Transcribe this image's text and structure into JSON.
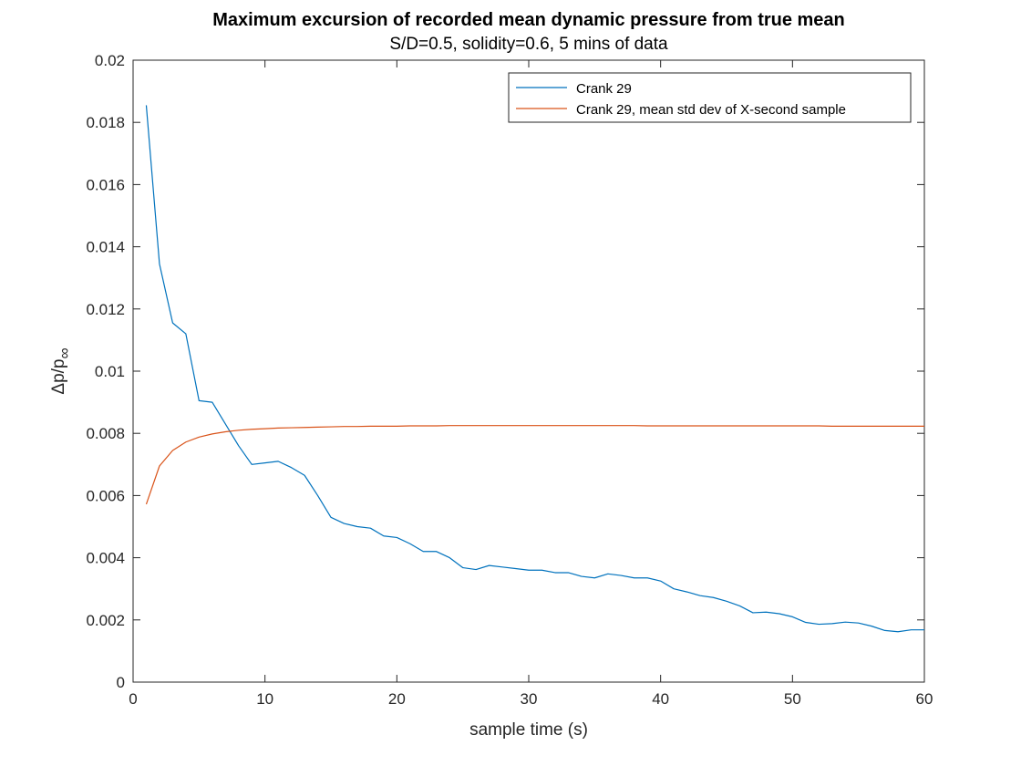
{
  "chart_data": {
    "type": "line",
    "title": "Maximum excursion of recorded mean dynamic pressure from true mean",
    "subtitle": "S/D=0.5, solidity=0.6, 5 mins of data",
    "xlabel": "sample time (s)",
    "ylabel_main": "Δp/p",
    "ylabel_sub": "∞",
    "xlim": [
      0,
      60
    ],
    "ylim": [
      0,
      0.02
    ],
    "xticks": [
      0,
      10,
      20,
      30,
      40,
      50,
      60
    ],
    "xtick_labels": [
      "0",
      "10",
      "20",
      "30",
      "40",
      "50",
      "60"
    ],
    "yticks": [
      0,
      0.002,
      0.004,
      0.006,
      0.008,
      0.01,
      0.012,
      0.014,
      0.016,
      0.018,
      0.02
    ],
    "ytick_labels": [
      "0",
      "0.002",
      "0.004",
      "0.006",
      "0.008",
      "0.01",
      "0.012",
      "0.014",
      "0.016",
      "0.018",
      "0.02"
    ],
    "grid": false,
    "legend_position": "top-right",
    "series": [
      {
        "name": "Crank 29",
        "color": "#0072BD",
        "x": [
          1,
          2,
          3,
          4,
          5,
          6,
          7,
          8,
          9,
          10,
          11,
          12,
          13,
          14,
          15,
          16,
          17,
          18,
          19,
          20,
          21,
          22,
          23,
          24,
          25,
          26,
          27,
          28,
          29,
          30,
          31,
          32,
          33,
          34,
          35,
          36,
          37,
          38,
          39,
          40,
          41,
          42,
          43,
          44,
          45,
          46,
          47,
          48,
          49,
          50,
          51,
          52,
          53,
          54,
          55,
          56,
          57,
          58,
          59,
          60
        ],
        "y": [
          0.01855,
          0.01345,
          0.01155,
          0.0112,
          0.00905,
          0.009,
          0.0083,
          0.0076,
          0.007,
          0.00705,
          0.0071,
          0.0069,
          0.00665,
          0.006,
          0.0053,
          0.0051,
          0.005,
          0.00495,
          0.0047,
          0.00465,
          0.00445,
          0.0042,
          0.0042,
          0.004,
          0.00368,
          0.00362,
          0.00375,
          0.0037,
          0.00365,
          0.0036,
          0.0036,
          0.00352,
          0.00352,
          0.0034,
          0.00335,
          0.00348,
          0.00343,
          0.00335,
          0.00335,
          0.00325,
          0.003,
          0.0029,
          0.00278,
          0.00272,
          0.0026,
          0.00245,
          0.00223,
          0.00225,
          0.0022,
          0.0021,
          0.00192,
          0.00186,
          0.00188,
          0.00193,
          0.0019,
          0.0018,
          0.00166,
          0.00162,
          0.00168,
          0.00168
        ]
      },
      {
        "name": "Crank 29, mean std dev of X-second sample",
        "color": "#D95319",
        "x": [
          1,
          2,
          3,
          4,
          5,
          6,
          7,
          8,
          9,
          10,
          11,
          12,
          13,
          14,
          15,
          16,
          17,
          18,
          19,
          20,
          21,
          22,
          23,
          24,
          25,
          26,
          27,
          28,
          29,
          30,
          31,
          32,
          33,
          34,
          35,
          36,
          37,
          38,
          39,
          40,
          41,
          42,
          43,
          44,
          45,
          46,
          47,
          48,
          49,
          50,
          51,
          52,
          53,
          54,
          55,
          56,
          57,
          58,
          59,
          60
        ],
        "y": [
          0.00572,
          0.00695,
          0.00745,
          0.00772,
          0.00788,
          0.00798,
          0.00805,
          0.0081,
          0.00813,
          0.00815,
          0.00817,
          0.00818,
          0.00819,
          0.0082,
          0.00821,
          0.00822,
          0.00822,
          0.00823,
          0.00823,
          0.00823,
          0.00824,
          0.00824,
          0.00824,
          0.00825,
          0.00825,
          0.00825,
          0.00825,
          0.00825,
          0.00825,
          0.00825,
          0.00825,
          0.00825,
          0.00825,
          0.00825,
          0.00825,
          0.00825,
          0.00825,
          0.00825,
          0.00824,
          0.00824,
          0.00824,
          0.00824,
          0.00824,
          0.00824,
          0.00824,
          0.00824,
          0.00824,
          0.00824,
          0.00824,
          0.00824,
          0.00824,
          0.00824,
          0.00823,
          0.00823,
          0.00823,
          0.00823,
          0.00823,
          0.00823,
          0.00823,
          0.00823
        ]
      }
    ]
  }
}
